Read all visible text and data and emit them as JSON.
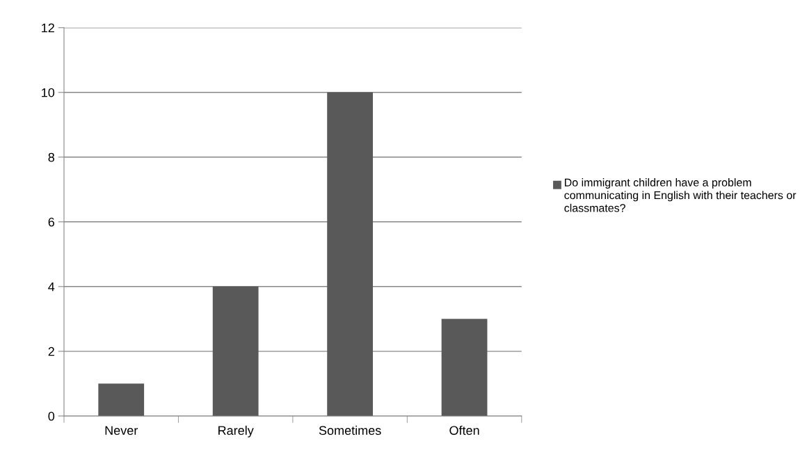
{
  "chart_data": {
    "type": "bar",
    "categories": [
      "Never",
      "Rarely",
      "Sometimes",
      "Often"
    ],
    "series": [
      {
        "name": "Do immigrant children have a problem communicating in English with their teachers or classmates?",
        "color": "#595959",
        "values": [
          1,
          4,
          10,
          3
        ]
      }
    ],
    "ylim": [
      0,
      12
    ],
    "yticks": [
      0,
      2,
      4,
      6,
      8,
      10,
      12
    ],
    "grid": "y",
    "legend": "right"
  }
}
